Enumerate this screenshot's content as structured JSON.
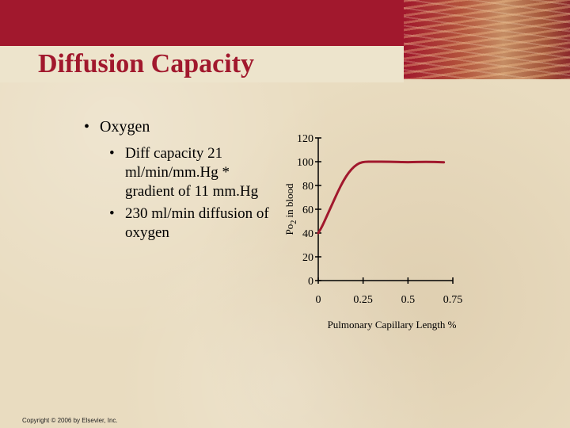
{
  "slide": {
    "title": "Diffusion Capacity",
    "bullets": {
      "main": "Oxygen",
      "sub": [
        "Diff capacity 21 ml/min/mm.Hg * gradient of 11 mm.Hg",
        "230 ml/min diffusion of oxygen"
      ]
    },
    "copyright": "Copyright © 2006 by Elsevier, Inc."
  },
  "colors": {
    "header": "#a1182d",
    "title": "#a1182d",
    "curve": "#a1182d",
    "background": "#e9dcc0"
  },
  "chart_data": {
    "type": "line",
    "xlabel": "Pulmonary Capillary Length %",
    "ylabel": "Po2 in blood",
    "ylabel_main": "Po",
    "ylabel_sub": "2",
    "ylabel_rest": " in blood",
    "xlim": [
      0,
      0.75
    ],
    "ylim": [
      0,
      120
    ],
    "x_ticks": [
      0,
      0.25,
      0.5,
      0.75
    ],
    "x_tick_labels": [
      "0",
      "0.25",
      "0.5",
      "0.75"
    ],
    "y_ticks": [
      0,
      20,
      40,
      60,
      80,
      100,
      120
    ],
    "y_tick_labels": [
      "0",
      "20",
      "40",
      "60",
      "80",
      "100",
      "120"
    ],
    "series": [
      {
        "x": [
          0,
          0.02,
          0.05,
          0.08,
          0.11,
          0.14,
          0.17,
          0.2,
          0.23,
          0.26,
          0.3,
          0.4,
          0.5,
          0.6,
          0.7
        ],
        "values": [
          40,
          45,
          55,
          65,
          75,
          84,
          91,
          96,
          99,
          100,
          100,
          100,
          99.5,
          100,
          99.5
        ]
      }
    ]
  }
}
